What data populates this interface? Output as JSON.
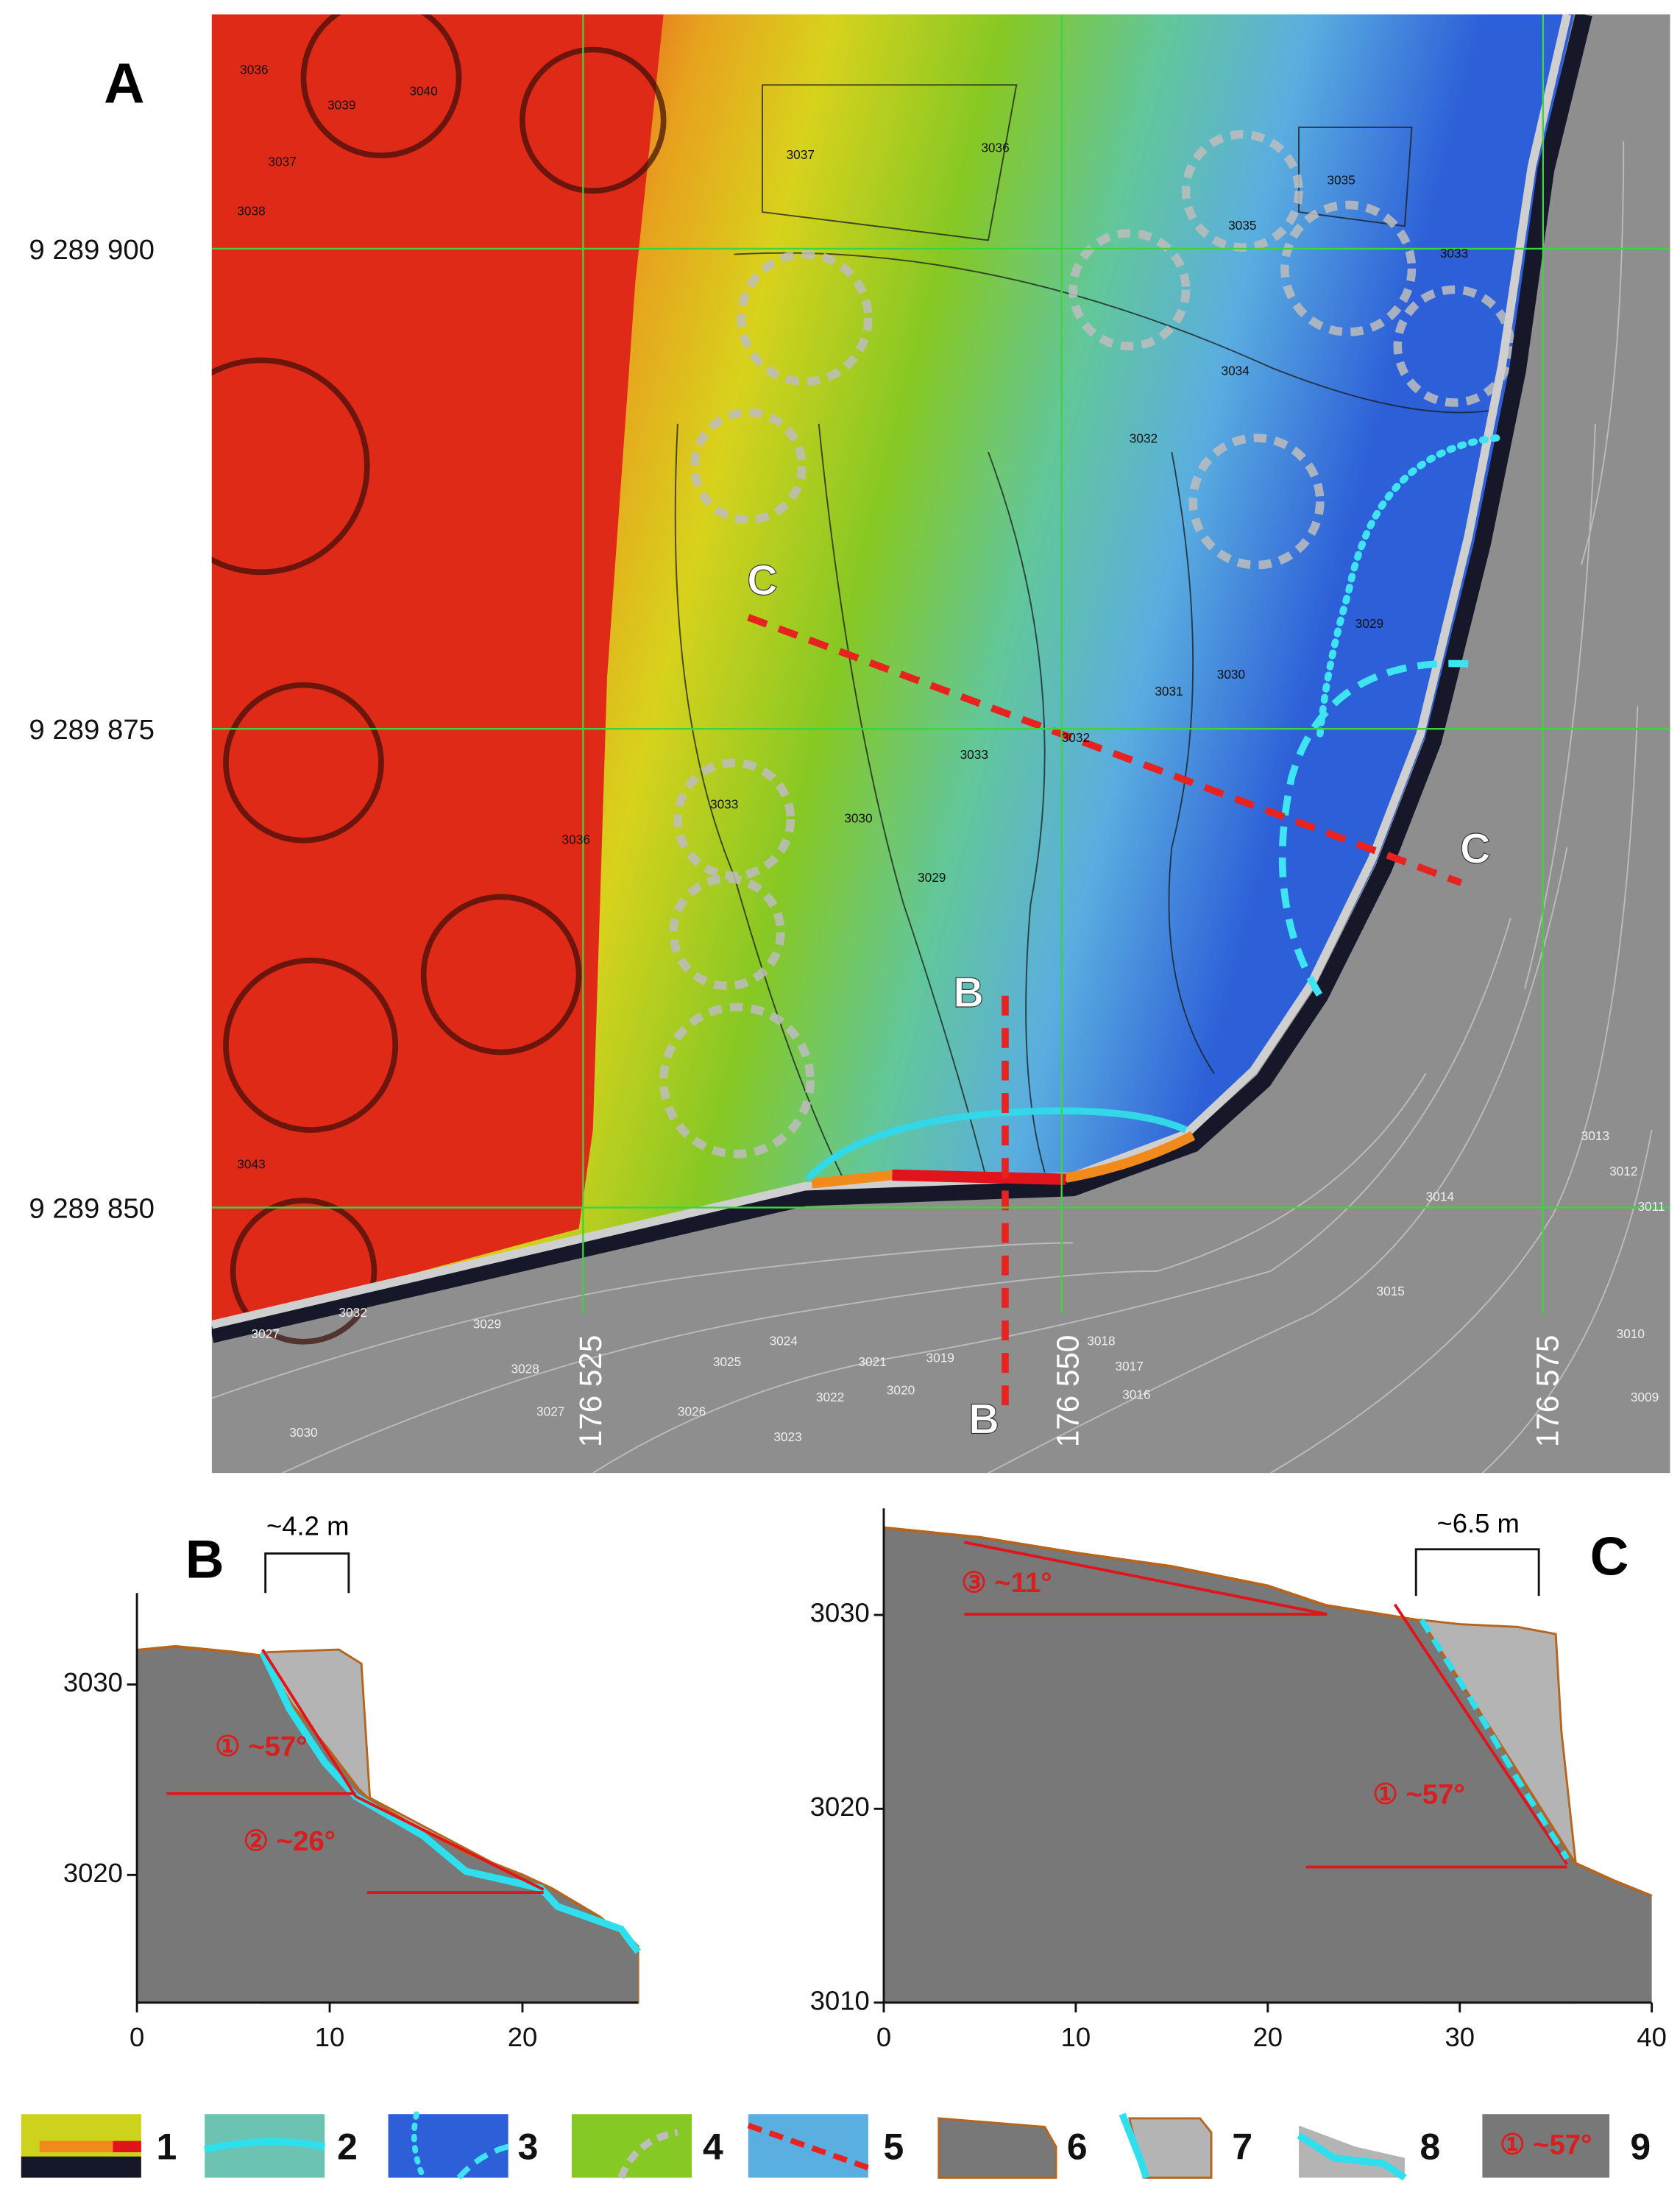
{
  "map": {
    "panel_label": "A",
    "northing_labels": [
      "9 289 900",
      "9 289 875",
      "9 289 850"
    ],
    "easting_labels": [
      "176 525",
      "176 550",
      "176 575"
    ],
    "section_labels": [
      "C",
      "C",
      "B",
      "B"
    ],
    "contour_labels": [
      "3036",
      "3039",
      "3040",
      "3037",
      "3038",
      "3037",
      "3036",
      "3035",
      "3035",
      "3033",
      "3034",
      "3032",
      "3029",
      "3031",
      "3030",
      "3032",
      "3033",
      "3030",
      "3029",
      "3036",
      "3033",
      "3043",
      "3027",
      "3032",
      "3029",
      "3028",
      "3025",
      "3024",
      "3026",
      "3027",
      "3023",
      "3022",
      "3021",
      "3020",
      "3019",
      "3030",
      "3018",
      "3017",
      "3016",
      "3015",
      "3014",
      "3013",
      "3012",
      "3011",
      "3010",
      "3009"
    ]
  },
  "chart_data": [
    {
      "type": "area",
      "title": "B",
      "x": [
        0,
        2,
        5,
        6.5,
        8,
        10,
        11.5,
        12,
        14,
        17,
        20,
        21.5,
        24,
        26
      ],
      "values": [
        3031.8,
        3032,
        3031.7,
        3031.5,
        3029,
        3026.5,
        3024.5,
        3024,
        3022.8,
        3021.2,
        3020,
        3019.3,
        3017.8,
        3016.2
      ],
      "color": "#787878",
      "xlim": [
        0,
        26
      ],
      "ylim": [
        3013.3,
        3034.8
      ],
      "xticks": [
        0,
        10,
        20
      ],
      "yticks": [
        3020,
        3030
      ],
      "annotations": [
        "~4.2 m",
        "① ~57°",
        "② ~26°"
      ]
    },
    {
      "type": "area",
      "title": "C",
      "x": [
        0,
        5,
        10,
        15,
        20,
        23,
        28,
        32,
        36,
        38,
        40
      ],
      "values": [
        3034.5,
        3034,
        3033.2,
        3032.5,
        3031.5,
        3030.5,
        3029.7,
        3023.5,
        3017.2,
        3016.3,
        3015.5
      ],
      "color": "#787878",
      "xlim": [
        0,
        40
      ],
      "ylim": [
        3010,
        3035.5
      ],
      "xticks": [
        0,
        10,
        20,
        30,
        40
      ],
      "yticks": [
        3010,
        3020,
        3030
      ],
      "annotations": [
        "~6.5 m",
        "③ ~11°",
        "① ~57°"
      ]
    }
  ],
  "legend": {
    "items": [
      "1",
      "2",
      "3",
      "4",
      "5",
      "6",
      "7",
      "8",
      "9"
    ],
    "sample_label": "① ~57°"
  }
}
